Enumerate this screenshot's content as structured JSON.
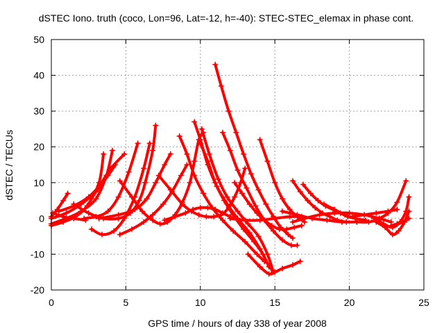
{
  "chart_data": {
    "type": "scatter",
    "title": "dSTEC Iono. truth (coco, Lon=96, Lat=-12, h=-40): STEC-STEC_elemax in phase cont.",
    "xlabel": "GPS time / hours of day 338 of year 2008",
    "ylabel": "dSTEC  / TECUs",
    "xlim": [
      0,
      25
    ],
    "ylim": [
      -20,
      50
    ],
    "xticks": [
      0,
      5,
      10,
      15,
      20,
      25
    ],
    "yticks": [
      -20,
      -10,
      0,
      10,
      20,
      30,
      40,
      50
    ],
    "grid": true,
    "marker": "+",
    "color": "#ff0000",
    "series": [
      {
        "x": [
          0.0,
          0.4,
          0.8,
          1.1
        ],
        "y": [
          0.5,
          2.5,
          5.0,
          7.0
        ]
      },
      {
        "x": [
          0.0,
          0.8,
          1.6,
          2.4,
          3.2,
          3.5
        ],
        "y": [
          -2.0,
          -1.0,
          0.5,
          3.5,
          10.0,
          18.0
        ]
      },
      {
        "x": [
          0.0,
          1.0,
          2.0,
          3.0,
          3.7,
          4.1
        ],
        "y": [
          -1.5,
          0.0,
          2.0,
          5.5,
          12.0,
          19.0
        ]
      },
      {
        "x": [
          0.0,
          1.0,
          2.0,
          3.0,
          3.8,
          4.3
        ],
        "y": [
          0.0,
          1.5,
          4.0,
          7.5,
          12.0,
          15.0
        ]
      },
      {
        "x": [
          0.1,
          0.8,
          1.5,
          2.3
        ],
        "y": [
          1.5,
          0.5,
          0.0,
          -0.5
        ]
      },
      {
        "x": [
          2.2,
          3.0,
          3.8,
          4.5,
          5.2,
          5.8
        ],
        "y": [
          0.0,
          0.5,
          2.0,
          6.0,
          13.0,
          21.0
        ]
      },
      {
        "x": [
          0.5,
          1.5,
          2.5,
          3.2,
          4.0,
          4.9
        ],
        "y": [
          2.0,
          3.5,
          6.0,
          9.0,
          14.0,
          18.0
        ]
      },
      {
        "x": [
          2.7,
          3.4,
          4.2,
          4.9,
          5.6,
          6.2,
          6.6
        ],
        "y": [
          -3.0,
          -4.5,
          -3.5,
          0.0,
          6.0,
          14.0,
          21.0
        ]
      },
      {
        "x": [
          4.6,
          5.4,
          6.2,
          6.8,
          7.5,
          8.1,
          8.7,
          9.1
        ],
        "y": [
          -4.5,
          -3.0,
          -1.0,
          1.0,
          4.0,
          7.5,
          12.0,
          15.0
        ]
      },
      {
        "x": [
          1.5,
          2.5,
          3.5,
          4.5,
          5.3,
          5.9,
          6.3,
          6.8,
          7.0
        ],
        "y": [
          4.0,
          1.5,
          0.0,
          0.0,
          1.5,
          5.0,
          10.0,
          19.0,
          26.0
        ]
      },
      {
        "x": [
          3.2,
          4.5,
          5.6,
          6.4,
          7.0,
          7.6,
          8.0
        ],
        "y": [
          0.0,
          1.0,
          2.5,
          5.5,
          10.0,
          15.0,
          18.0
        ]
      },
      {
        "x": [
          4.6,
          5.4,
          6.1,
          6.8,
          7.3,
          7.8,
          8.3,
          8.8,
          9.3,
          9.6,
          9.9,
          10.2
        ],
        "y": [
          10.5,
          6.0,
          2.0,
          -0.5,
          -1.5,
          -1.0,
          1.0,
          4.5,
          10.0,
          16.0,
          22.0,
          24.0
        ]
      },
      {
        "x": [
          7.2,
          8.0,
          8.8,
          9.4,
          9.9,
          10.4,
          10.9,
          11.4,
          11.9,
          12.3,
          12.7,
          13.0
        ],
        "y": [
          12.0,
          8.0,
          4.0,
          2.0,
          1.0,
          0.5,
          0.5,
          1.0,
          3.0,
          6.0,
          10.0,
          14.0
        ]
      },
      {
        "x": [
          7.6,
          8.3,
          9.0,
          9.5,
          10.0,
          10.5,
          11.0,
          11.5,
          12.0
        ],
        "y": [
          -0.5,
          0.5,
          1.5,
          2.5,
          3.0,
          3.0,
          2.5,
          1.5,
          0.5
        ]
      },
      {
        "x": [
          8.6,
          9.1,
          9.6,
          10.2,
          10.8,
          11.5,
          12.2,
          13.0,
          13.8,
          14.3
        ],
        "y": [
          23.0,
          18.0,
          12.0,
          7.0,
          3.0,
          -0.5,
          -3.5,
          -6.5,
          -10.0,
          -12.0
        ]
      },
      {
        "x": [
          9.6,
          10.0,
          10.5,
          11.1,
          11.8,
          12.5,
          13.3,
          14.0,
          14.5,
          14.9
        ],
        "y": [
          27.0,
          22.0,
          15.0,
          9.0,
          4.0,
          0.0,
          -4.0,
          -8.5,
          -12.5,
          -15.0
        ]
      },
      {
        "x": [
          10.0,
          10.5,
          11.0,
          11.6,
          12.2,
          12.9,
          13.6,
          14.2,
          14.6
        ],
        "y": [
          21.0,
          16.0,
          10.0,
          5.0,
          1.0,
          -3.0,
          -6.5,
          -10.0,
          -13.5
        ]
      },
      {
        "x": [
          10.1,
          10.6,
          11.2,
          11.8,
          12.5,
          13.2,
          13.9,
          14.5,
          14.9
        ],
        "y": [
          25.0,
          18.0,
          11.0,
          6.0,
          2.0,
          -1.5,
          -5.0,
          -10.0,
          -15.0
        ]
      },
      {
        "x": [
          11.0,
          11.4,
          11.9,
          12.4,
          12.9,
          13.4,
          13.9,
          14.4,
          14.9,
          15.4,
          15.9,
          16.2
        ],
        "y": [
          43.0,
          37.0,
          30.0,
          24.0,
          18.0,
          12.5,
          8.0,
          4.0,
          0.5,
          -2.5,
          -4.5,
          -5.5
        ]
      },
      {
        "x": [
          11.5,
          12.0,
          12.5,
          13.1,
          13.7,
          14.3,
          14.9,
          15.5,
          16.1,
          16.5
        ],
        "y": [
          24.0,
          19.0,
          13.5,
          8.5,
          3.5,
          -0.5,
          -3.5,
          -6.0,
          -7.5,
          -7.5
        ]
      },
      {
        "x": [
          12.3,
          12.8,
          13.3,
          13.8,
          14.3,
          14.8,
          15.3,
          15.8,
          16.3,
          16.8
        ],
        "y": [
          10.0,
          7.0,
          4.0,
          1.5,
          -0.5,
          -2.0,
          -3.0,
          -3.0,
          -2.5,
          -2.0
        ]
      },
      {
        "x": [
          14.0,
          14.5,
          15.0,
          15.5,
          16.0,
          16.5,
          17.0
        ],
        "y": [
          22.0,
          16.0,
          10.0,
          5.5,
          2.5,
          0.5,
          -1.0
        ]
      },
      {
        "x": [
          12.0,
          13.0,
          14.0,
          15.0,
          16.0,
          16.8
        ],
        "y": [
          0.0,
          -0.5,
          -0.5,
          0.0,
          0.5,
          0.5
        ]
      },
      {
        "x": [
          13.2,
          14.0,
          14.6,
          15.0,
          15.5,
          16.2,
          16.7
        ],
        "y": [
          -10.0,
          -13.5,
          -15.5,
          -15.0,
          -14.0,
          -13.0,
          -12.0
        ]
      },
      {
        "x": [
          16.2,
          16.7,
          17.2,
          17.7,
          18.2,
          18.7,
          19.2,
          19.8
        ],
        "y": [
          10.5,
          7.5,
          5.0,
          3.0,
          1.5,
          0.5,
          -0.5,
          -1.0
        ]
      },
      {
        "x": [
          16.9,
          17.4,
          17.9,
          18.4,
          18.9,
          19.4,
          19.9,
          20.4
        ],
        "y": [
          9.5,
          7.0,
          5.0,
          3.5,
          2.5,
          1.5,
          0.5,
          0.0
        ]
      },
      {
        "x": [
          16.2,
          17.0,
          18.0,
          19.0,
          20.0,
          21.0,
          22.0,
          22.8
        ],
        "y": [
          -1.0,
          0.0,
          1.0,
          1.5,
          1.5,
          1.0,
          0.0,
          -1.0
        ]
      },
      {
        "x": [
          15.5,
          16.5,
          17.5,
          18.5,
          19.5,
          20.5
        ],
        "y": [
          2.0,
          1.0,
          0.0,
          -0.5,
          -1.0,
          -1.0
        ]
      },
      {
        "x": [
          18.3,
          19.0,
          19.7,
          20.4,
          21.1
        ],
        "y": [
          4.0,
          2.5,
          1.0,
          0.0,
          -0.5
        ]
      },
      {
        "x": [
          20.2,
          21.0,
          21.8,
          22.6,
          23.2
        ],
        "y": [
          0.5,
          1.0,
          1.5,
          2.0,
          2.5
        ]
      },
      {
        "x": [
          20.5,
          21.3,
          22.0,
          22.6,
          23.2,
          23.8
        ],
        "y": [
          -1.0,
          -1.0,
          0.0,
          1.5,
          4.5,
          10.5
        ]
      },
      {
        "x": [
          21.5,
          22.3,
          22.9,
          23.4,
          23.8,
          24.0
        ],
        "y": [
          0.5,
          -1.5,
          -2.5,
          -1.0,
          2.0,
          6.0
        ]
      },
      {
        "x": [
          21.8,
          22.4,
          22.9,
          23.3,
          23.7,
          24.0
        ],
        "y": [
          -1.0,
          -2.5,
          -4.5,
          -3.5,
          -1.0,
          2.0
        ]
      },
      {
        "x": [
          22.8,
          23.2,
          23.6,
          24.0
        ],
        "y": [
          -2.0,
          -1.5,
          -1.0,
          0.0
        ]
      }
    ]
  }
}
